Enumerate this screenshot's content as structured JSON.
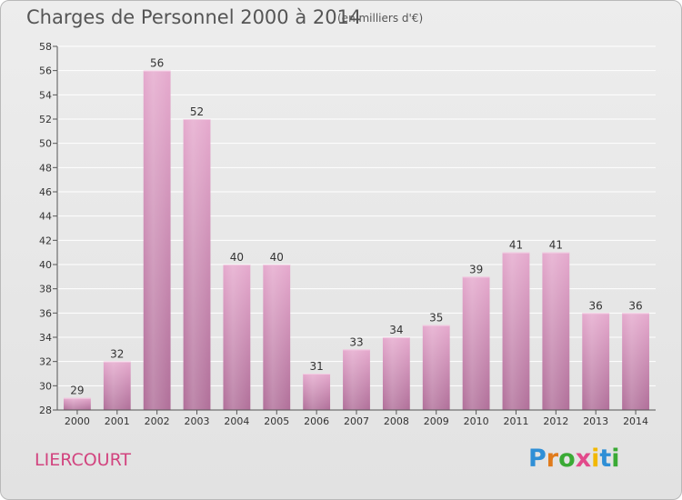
{
  "header": {
    "title": "Charges de Personnel 2000 à 2014",
    "unit": "(en milliers d'€)"
  },
  "footer": {
    "commune": "LIERCOURT",
    "logo_text": "Proxiti",
    "logo_letters": [
      {
        "char": "P",
        "color": "#2f8fd6"
      },
      {
        "char": "r",
        "color": "#e07b1c"
      },
      {
        "char": "o",
        "color": "#3aaa35"
      },
      {
        "char": "x",
        "color": "#e24a8b"
      },
      {
        "char": "i",
        "color": "#f2b800"
      },
      {
        "char": "t",
        "color": "#2f8fd6"
      },
      {
        "char": "i",
        "color": "#3aaa35"
      }
    ]
  },
  "colors": {
    "bar_light": "#e5a9cd",
    "bar_dark": "#b06f99",
    "axis": "#555555",
    "grid": "#ffffff",
    "commune": "#d2447f"
  },
  "chart_data": {
    "type": "bar",
    "title": "Charges de Personnel 2000 à 2014",
    "categories": [
      "2000",
      "2001",
      "2002",
      "2003",
      "2004",
      "2005",
      "2006",
      "2007",
      "2008",
      "2009",
      "2010",
      "2011",
      "2012",
      "2013",
      "2014"
    ],
    "values": [
      29,
      32,
      56,
      52,
      40,
      40,
      31,
      33,
      34,
      35,
      39,
      41,
      41,
      36,
      36
    ],
    "ylim": [
      28,
      58
    ],
    "yticks": [
      28,
      30,
      32,
      34,
      36,
      38,
      40,
      42,
      44,
      46,
      48,
      50,
      52,
      54,
      56,
      58
    ],
    "grid": true,
    "xlabel": "",
    "ylabel": ""
  }
}
